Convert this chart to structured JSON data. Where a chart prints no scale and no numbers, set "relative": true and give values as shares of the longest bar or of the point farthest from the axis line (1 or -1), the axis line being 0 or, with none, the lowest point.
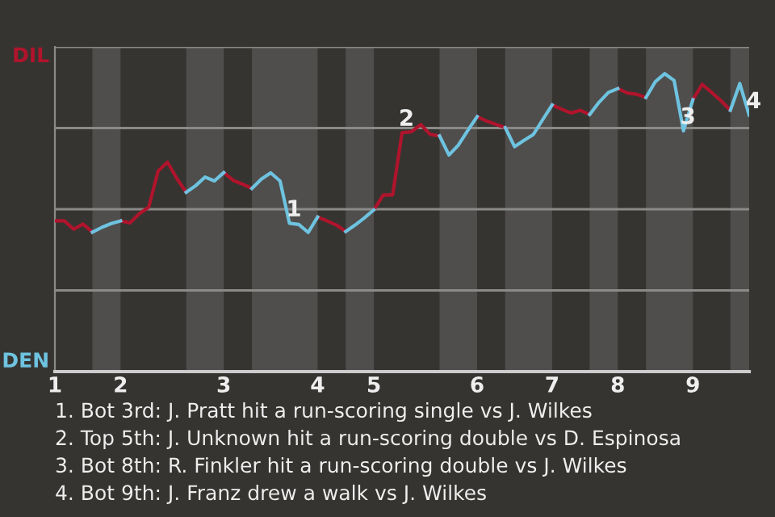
{
  "chart_data": {
    "type": "line",
    "categories": [
      "1",
      null,
      null,
      null,
      null,
      null,
      null,
      "2",
      null,
      null,
      null,
      null,
      null,
      null,
      null,
      null,
      null,
      null,
      "3",
      null,
      null,
      null,
      null,
      null,
      null,
      null,
      null,
      null,
      "4",
      null,
      null,
      null,
      null,
      null,
      "5",
      null,
      null,
      null,
      null,
      null,
      null,
      null,
      null,
      null,
      null,
      "6",
      null,
      null,
      null,
      null,
      null,
      null,
      null,
      "7",
      null,
      null,
      null,
      null,
      null,
      null,
      "8",
      null,
      null,
      null,
      null,
      null,
      null,
      null,
      "9",
      null,
      null,
      null,
      null,
      null,
      null
    ],
    "relative": true,
    "series": [
      {
        "name": "DIL",
        "color": "#b0142c",
        "values": [
          0.506,
          0.506,
          0.478,
          0.495,
          0.468,
          null,
          null,
          0.506,
          0.499,
          0.53,
          0.552,
          0.673,
          0.703,
          0.648,
          0.602,
          null,
          null,
          null,
          0.668,
          0.642,
          0.629,
          0.615,
          null,
          null,
          null,
          null,
          null,
          null,
          0.519,
          0.506,
          0.492,
          0.47,
          null,
          null,
          0.543,
          0.593,
          0.593,
          0.802,
          0.805,
          0.829,
          0.796,
          0.791,
          null,
          null,
          null,
          0.856,
          0.841,
          0.83,
          0.819,
          null,
          null,
          null,
          null,
          0.895,
          0.881,
          0.868,
          0.877,
          0.863,
          null,
          null,
          0.95,
          0.935,
          0.931,
          0.92,
          null,
          null,
          null,
          null,
          0.913,
          0.964,
          0.937,
          0.909,
          0.877,
          null,
          null
        ]
      },
      {
        "name": "DEN",
        "color": "#6ec3e0",
        "values": [
          null,
          null,
          null,
          null,
          0.468,
          0.484,
          0.497,
          0.506,
          null,
          null,
          null,
          null,
          null,
          null,
          0.602,
          0.624,
          0.653,
          0.64,
          0.668,
          null,
          null,
          0.615,
          0.646,
          0.667,
          0.64,
          0.498,
          0.494,
          0.467,
          0.519,
          null,
          null,
          0.47,
          0.492,
          0.516,
          0.543,
          null,
          null,
          null,
          null,
          null,
          null,
          0.791,
          0.727,
          0.76,
          0.809,
          0.856,
          null,
          null,
          0.819,
          0.755,
          0.776,
          0.796,
          0.846,
          0.895,
          null,
          null,
          null,
          0.863,
          0.904,
          0.937,
          0.95,
          null,
          null,
          0.92,
          0.973,
          1,
          0.977,
          0.808,
          0.913,
          null,
          null,
          null,
          0.877,
          0.967,
          0.861
        ]
      }
    ],
    "grid": "y",
    "annotations": [
      {
        "text": "1",
        "y": 0.498
      },
      {
        "text": "2",
        "y": 0.802
      },
      {
        "text": "3",
        "y": 0.808
      },
      {
        "text": "4",
        "y": 0.861
      },
      "1. Bot 3rd: J. Pratt hit a run-scoring single vs J. Wilkes",
      "2. Top 5th: J. Unknown hit a run-scoring double vs D. Espinosa",
      "3. Bot 8th: R. Finkler hit a run-scoring double vs J. Wilkes",
      "4. Bot 9th: J. Franz drew a walk vs J. Wilkes"
    ]
  }
}
